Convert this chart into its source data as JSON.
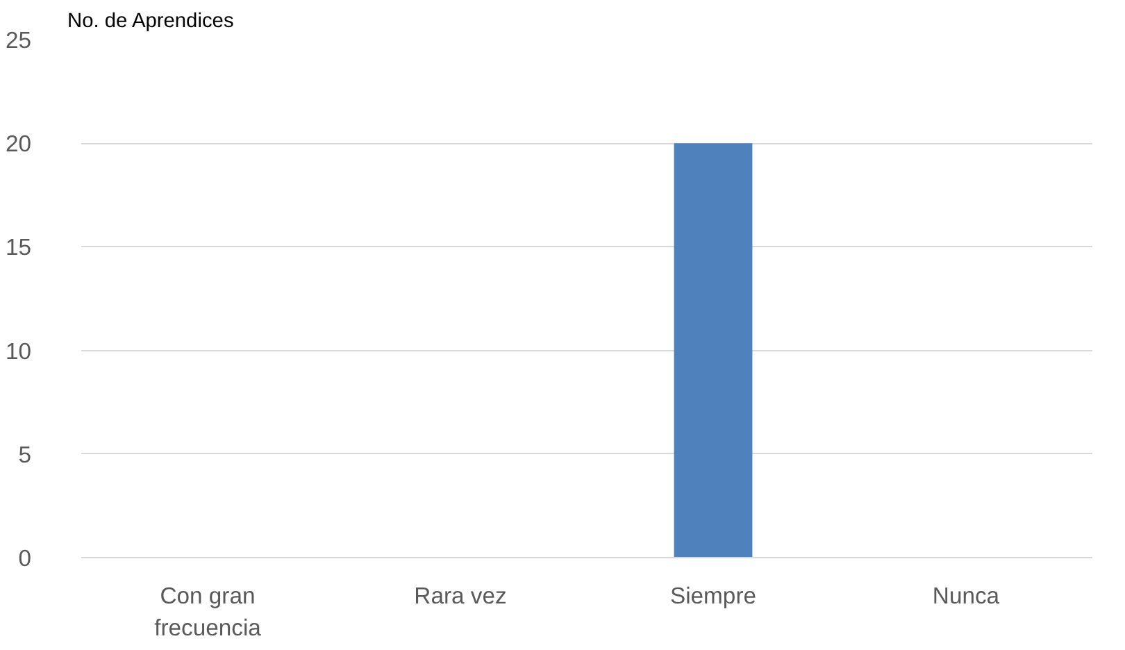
{
  "chart_data": {
    "type": "bar",
    "ylabel": "No. de Aprendices",
    "categories": [
      "Con gran frecuencia",
      "Rara vez",
      "Siempre",
      "Nunca"
    ],
    "values": [
      0,
      0,
      20,
      0
    ],
    "color": "#4f81bd",
    "ylim": [
      0,
      25
    ],
    "yticks": [
      0,
      5,
      10,
      15,
      20,
      25
    ],
    "grid": "y"
  }
}
